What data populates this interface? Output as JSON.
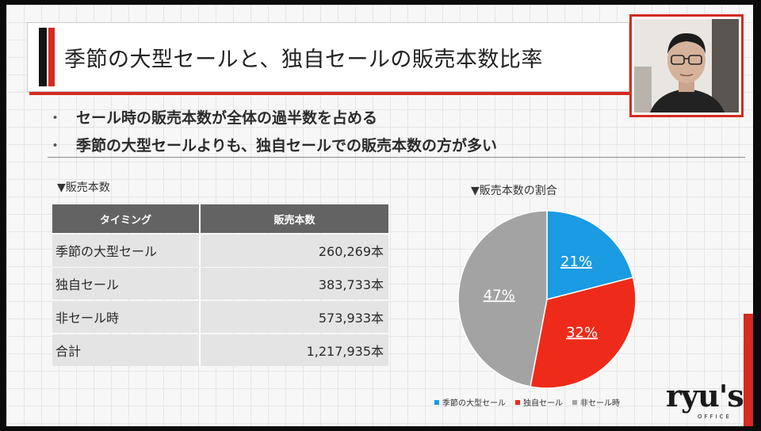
{
  "slide": {
    "title": "季節の大型セールと、独自セールの販売本数比率",
    "bullets": [
      "セール時の販売本数が全体の過半数を占める",
      "季節の大型セールよりも、独自セールでの販売本数の方が多い"
    ],
    "bullet_marker": "・"
  },
  "table": {
    "label": "▼販売本数",
    "headers": [
      "タイミング",
      "販売本数"
    ],
    "rows": [
      {
        "name": "季節の大型セール",
        "value": "260,269本"
      },
      {
        "name": "独自セール",
        "value": "383,733本"
      },
      {
        "name": "非セール時",
        "value": "573,933本"
      },
      {
        "name": "合計",
        "value": "1,217,935本"
      }
    ]
  },
  "chart_data": {
    "type": "pie",
    "title": "▼販売本数の割合",
    "categories": [
      "季節の大型セール",
      "独自セール",
      "非セール時"
    ],
    "values": [
      21,
      32,
      47
    ],
    "labels": [
      "21%",
      "32%",
      "47%"
    ],
    "colors": [
      "#1a9be2",
      "#ee2b1a",
      "#a3a3a3"
    ],
    "legend_position": "bottom"
  },
  "logo": {
    "text": "ryu's",
    "sub": "OFFICE"
  }
}
